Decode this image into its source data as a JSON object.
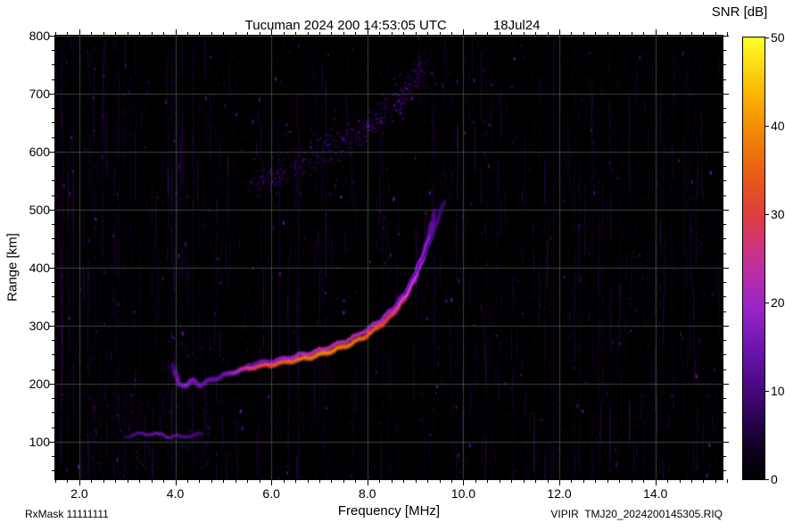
{
  "header": {
    "title": "Tucuman 2024 200 14:53:05 UTC",
    "date": "18Jul24"
  },
  "colorbar": {
    "title": "SNR [dB]",
    "min": 0,
    "max": 50,
    "tick_values": [
      0,
      10,
      20,
      30,
      40,
      50
    ],
    "tick_labels": [
      "0",
      "10",
      "20",
      "30",
      "40",
      "50"
    ]
  },
  "axes": {
    "x": {
      "title": "Frequency [MHz]",
      "min": 1.5,
      "max": 15.4,
      "major_tick_values": [
        2,
        4,
        6,
        8,
        10,
        12,
        14
      ],
      "major_tick_labels": [
        "2.0",
        "4.0",
        "6.0",
        "8.0",
        "10.0",
        "12.0",
        "14.0"
      ],
      "minor_step": 0.25
    },
    "y": {
      "title": "Range [km]",
      "min": 35,
      "max": 800,
      "major_tick_values": [
        100,
        200,
        300,
        400,
        500,
        600,
        700,
        800
      ],
      "major_tick_labels": [
        "100",
        "200",
        "300",
        "400",
        "500",
        "600",
        "700",
        "800"
      ],
      "minor_step": 25
    }
  },
  "footer": {
    "rx_mask": "RxMask 11111111",
    "file_label": "VIPIR  TMJ20_2024200145305.RIQ"
  },
  "chart_data": {
    "type": "heatmap",
    "title": "Tucuman 2024 200 14:53:05 UTC 18Jul24",
    "xlabel": "Frequency [MHz]",
    "ylabel": "Range [km]",
    "zlabel": "SNR [dB]",
    "xlim": [
      1.5,
      15.4
    ],
    "ylim": [
      35,
      800
    ],
    "zlim": [
      0,
      50
    ],
    "grid": true,
    "background": "#000000",
    "grid_color": "rgba(120,150,120,0.45)",
    "colormap_stops": [
      [
        0.0,
        [
          0,
          0,
          0
        ]
      ],
      [
        0.06,
        [
          12,
          0,
          28
        ]
      ],
      [
        0.12,
        [
          35,
          2,
          70
        ]
      ],
      [
        0.2,
        [
          70,
          8,
          125
        ]
      ],
      [
        0.3,
        [
          110,
          22,
          175
        ]
      ],
      [
        0.38,
        [
          150,
          35,
          200
        ]
      ],
      [
        0.46,
        [
          183,
          45,
          170
        ]
      ],
      [
        0.53,
        [
          207,
          52,
          120
        ]
      ],
      [
        0.6,
        [
          222,
          62,
          62
        ]
      ],
      [
        0.68,
        [
          232,
          88,
          26
        ]
      ],
      [
        0.78,
        [
          242,
          132,
          6
        ]
      ],
      [
        0.88,
        [
          250,
          186,
          2
        ]
      ],
      [
        1.0,
        [
          255,
          255,
          40
        ]
      ]
    ],
    "traces": [
      {
        "name": "E-layer-echo",
        "core_width": 2.2,
        "glow_width": 5,
        "points": [
          [
            2.95,
            109,
            7
          ],
          [
            3.15,
            112,
            11
          ],
          [
            3.4,
            114,
            13
          ],
          [
            3.65,
            112,
            14
          ],
          [
            3.9,
            109,
            13
          ],
          [
            4.15,
            108,
            12
          ],
          [
            4.4,
            111,
            10
          ],
          [
            4.6,
            114,
            7
          ]
        ]
      },
      {
        "name": "F-layer-O-mode",
        "core_width": 2.6,
        "glow_width": 7,
        "points": [
          [
            3.95,
            234,
            9
          ],
          [
            4.0,
            216,
            13
          ],
          [
            4.08,
            200,
            16
          ],
          [
            4.22,
            196,
            17
          ],
          [
            4.38,
            206,
            15
          ],
          [
            4.52,
            197,
            14
          ],
          [
            4.68,
            204,
            14
          ],
          [
            4.88,
            210,
            13
          ],
          [
            5.08,
            216,
            16
          ],
          [
            5.28,
            222,
            21
          ],
          [
            5.55,
            227,
            27
          ],
          [
            5.9,
            231,
            31
          ],
          [
            6.3,
            237,
            34
          ],
          [
            6.7,
            243,
            36
          ],
          [
            7.1,
            252,
            38
          ],
          [
            7.5,
            263,
            37
          ],
          [
            7.9,
            278,
            35
          ],
          [
            8.2,
            295,
            32
          ],
          [
            8.5,
            317,
            29
          ],
          [
            8.75,
            343,
            25
          ],
          [
            8.95,
            374,
            21
          ],
          [
            9.12,
            410,
            18
          ],
          [
            9.25,
            445,
            15
          ],
          [
            9.35,
            478,
            12
          ],
          [
            9.42,
            500,
            10
          ]
        ]
      },
      {
        "name": "F-layer-X-mode",
        "core_width": 2.4,
        "glow_width": 6,
        "points": [
          [
            5.5,
            233,
            13
          ],
          [
            5.9,
            238,
            16
          ],
          [
            6.3,
            244,
            19
          ],
          [
            6.7,
            251,
            22
          ],
          [
            7.1,
            260,
            23
          ],
          [
            7.5,
            272,
            23
          ],
          [
            7.9,
            288,
            22
          ],
          [
            8.25,
            308,
            20
          ],
          [
            8.55,
            331,
            18
          ],
          [
            8.8,
            358,
            16
          ],
          [
            9.0,
            390,
            15
          ],
          [
            9.2,
            425,
            13
          ],
          [
            9.38,
            462,
            11
          ],
          [
            9.52,
            495,
            10
          ],
          [
            9.62,
            520,
            8
          ]
        ]
      }
    ],
    "diffuse_echo": {
      "name": "spread-F-second-hop",
      "curve": [
        [
          5.6,
          540
        ],
        [
          6.2,
          562
        ],
        [
          6.8,
          588
        ],
        [
          7.4,
          615
        ],
        [
          8.0,
          645
        ],
        [
          8.5,
          680
        ],
        [
          8.9,
          715
        ],
        [
          9.2,
          752
        ]
      ],
      "count": 700,
      "freq_sigma": 0.35,
      "range_sigma": 40,
      "snr_range": [
        3,
        14
      ]
    },
    "noise": {
      "seed": 20240718,
      "speckle_count": 16000,
      "bright_speck_count": 320,
      "column_dash_max": 16
    }
  }
}
